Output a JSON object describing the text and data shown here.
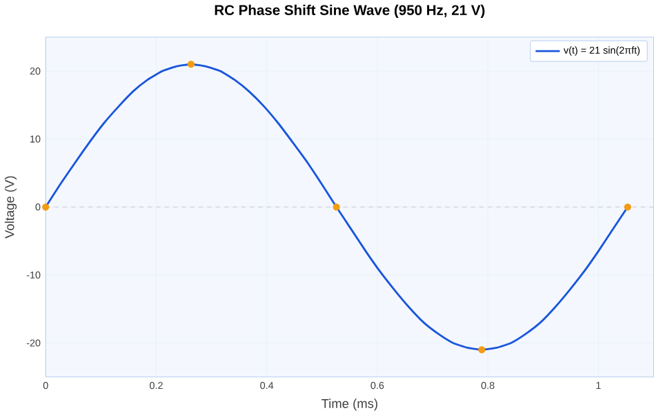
{
  "chart_data": {
    "type": "line",
    "title": "RC Phase Shift Sine Wave (950 Hz, 21 V)",
    "xlabel": "Time (ms)",
    "ylabel": "Voltage (V)",
    "xlim": [
      0,
      1.1
    ],
    "ylim": [
      -25,
      25
    ],
    "xticks": [
      0,
      0.2,
      0.4,
      0.6,
      0.8,
      1
    ],
    "yticks": [
      -20,
      -10,
      0,
      10,
      20
    ],
    "grid": true,
    "legend": "top right",
    "series": [
      {
        "name": "v(t) = 21 sin(2πft)",
        "color": "#1a56db",
        "x": [
          0,
          0.026,
          0.053,
          0.079,
          0.105,
          0.132,
          0.158,
          0.184,
          0.211,
          0.237,
          0.263,
          0.289,
          0.316,
          0.342,
          0.368,
          0.395,
          0.421,
          0.447,
          0.474,
          0.5,
          0.526,
          0.553,
          0.579,
          0.605,
          0.632,
          0.658,
          0.684,
          0.711,
          0.737,
          0.763,
          0.789,
          0.816,
          0.842,
          0.868,
          0.895,
          0.921,
          0.947,
          0.974,
          1.0,
          1.026,
          1.053
        ],
        "values": [
          0,
          3.3,
          6.5,
          9.5,
          12.3,
          14.8,
          17.0,
          18.7,
          20.0,
          20.7,
          21,
          20.7,
          20.0,
          18.7,
          17.0,
          14.8,
          12.3,
          9.5,
          6.5,
          3.3,
          0,
          -3.3,
          -6.5,
          -9.5,
          -12.3,
          -14.8,
          -17.0,
          -18.7,
          -20.0,
          -20.7,
          -21,
          -20.7,
          -20.0,
          -18.7,
          -17.0,
          -14.8,
          -12.3,
          -9.5,
          -6.5,
          -3.3,
          0
        ]
      },
      {
        "color": "#f39c12",
        "type": "scatter",
        "marker": "circle",
        "x": [
          0,
          0.263,
          0.526,
          0.789,
          1.053
        ],
        "values": [
          0,
          21,
          0,
          -21,
          0
        ]
      }
    ],
    "ref_lines": [
      {
        "axis": "y",
        "value": 0,
        "color": "#c8c8c8",
        "line_style": "dashed"
      }
    ]
  }
}
